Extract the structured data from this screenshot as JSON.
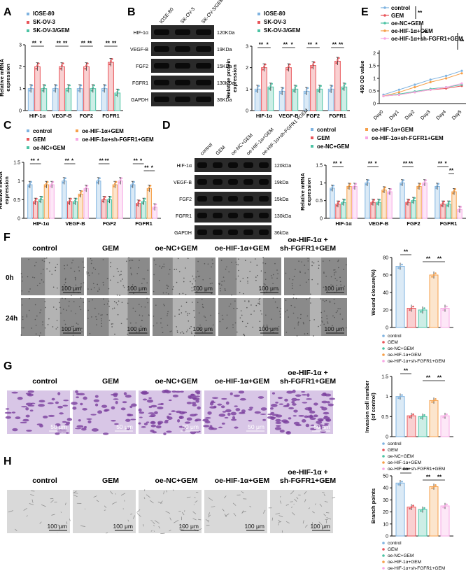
{
  "panel_labels": {
    "A": "A",
    "B": "B",
    "C": "C",
    "D": "D",
    "E": "E",
    "F": "F",
    "G": "G",
    "H": "H"
  },
  "colors": {
    "control": "#7fb3e0",
    "gem": "#e8555a",
    "oe_nc": "#4cc3a4",
    "oe_hif": "#f6a04a",
    "oe_hif_sh": "#f7a8e4",
    "blot_bg": "#222",
    "stain": "#7b3f9e"
  },
  "legends": {
    "a": [
      "IOSE-80",
      "SK-OV-3",
      "SK-OV-3/GEM"
    ],
    "c": [
      "control",
      "GEM",
      "oe-NC+GEM",
      "oe-HIF-1α+GEM",
      "oe-HIF-1α+sh-FGFR1+GEM"
    ],
    "e": [
      "control",
      "GEM",
      "oe-NC+GEM",
      "oe-HIF-1α+GEM",
      "oe-HIF-1α+sh-FGFR1+GEM"
    ],
    "fgh": [
      "control",
      "GEM",
      "oe-NC+GEM",
      "oe-HIF-1α+GEM",
      "oe-HIF-1α+sh-FGFR1+GEM"
    ]
  },
  "blot_b": {
    "lanes": [
      "IOSE-80",
      "SK-OV-3",
      "SK-OV-3/GEM"
    ],
    "rows": [
      {
        "name": "HIF-1α",
        "kda": "120KDa"
      },
      {
        "name": "VEGF-B",
        "kda": "19KDa"
      },
      {
        "name": "FGF2",
        "kda": "15KDa"
      },
      {
        "name": "FGFR1",
        "kda": "130KDa"
      },
      {
        "name": "GAPDH",
        "kda": "36KDa"
      }
    ]
  },
  "blot_d": {
    "lanes": [
      "control",
      "GEM",
      "oe-NC+GEM",
      "oe-HIF-1α+GEM",
      "oe-HIF-1α+sh-FGFR1 +GEM"
    ],
    "rows": [
      {
        "name": "HIF-1α",
        "kda": "120kDa"
      },
      {
        "name": "VEGF-B",
        "kda": "19kDa"
      },
      {
        "name": "FGF2",
        "kda": "15kDa"
      },
      {
        "name": "FGFR1",
        "kda": "130kDa"
      },
      {
        "name": "GAPDH",
        "kda": "36kDa"
      }
    ]
  },
  "micro": {
    "cols": [
      "control",
      "GEM",
      "oe-NC+GEM",
      "oe-HIF-1α+GEM",
      "oe-HIF-1α +",
      "sh-FGFR1+GEM"
    ],
    "rows_f": [
      "0h",
      "24h"
    ],
    "scale": "100 μm",
    "scale_g": "50 μm"
  },
  "chart_data": [
    {
      "id": "A",
      "type": "bar",
      "ylabel": "Relative mRNA expression",
      "ylim": [
        0,
        3
      ],
      "yticks": [
        0,
        1,
        2,
        3
      ],
      "categories": [
        "HIF-1α",
        "VEGF-B",
        "FGF2",
        "FGFR1"
      ],
      "series": [
        {
          "name": "IOSE-80",
          "values": [
            1.0,
            1.0,
            1.0,
            1.0
          ]
        },
        {
          "name": "SK-OV-3",
          "values": [
            2.0,
            2.0,
            2.0,
            2.2
          ]
        },
        {
          "name": "SK-OV-3/GEM",
          "values": [
            1.0,
            1.0,
            1.0,
            0.8
          ]
        }
      ],
      "sig": [
        [
          "**",
          "*"
        ],
        [
          "**",
          "**"
        ],
        [
          "**",
          "**"
        ],
        [
          "**",
          "**"
        ]
      ]
    },
    {
      "id": "B",
      "type": "bar",
      "ylabel": "Relative protein expression",
      "ylim": [
        0,
        3
      ],
      "yticks": [
        0,
        1,
        2,
        3
      ],
      "categories": [
        "HIF-1α",
        "VEGF-B",
        "FGF2",
        "FGFR1"
      ],
      "series": [
        {
          "name": "IOSE-80",
          "values": [
            1.0,
            0.9,
            0.9,
            1.0
          ]
        },
        {
          "name": "SK-OV-3",
          "values": [
            2.0,
            2.0,
            2.1,
            2.3
          ]
        },
        {
          "name": "SK-OV-3/GEM",
          "values": [
            1.1,
            1.0,
            1.0,
            1.1
          ]
        }
      ],
      "sig": [
        [
          "**",
          "*"
        ],
        [
          "**",
          "*"
        ],
        [
          "**",
          "*"
        ],
        [
          "**",
          "**"
        ]
      ]
    },
    {
      "id": "C",
      "type": "bar",
      "ylabel": "Relative mRNA expression",
      "ylim": [
        0,
        1.5
      ],
      "yticks": [
        0.0,
        0.5,
        1.0,
        1.5
      ],
      "categories": [
        "HIF-1α",
        "VEGF-B",
        "FGF2",
        "FGFR1"
      ],
      "series": [
        {
          "name": "control",
          "values": [
            0.9,
            1.0,
            1.0,
            0.9
          ]
        },
        {
          "name": "GEM",
          "values": [
            0.45,
            0.45,
            0.5,
            0.4
          ]
        },
        {
          "name": "oe-NC+GEM",
          "values": [
            0.5,
            0.45,
            0.5,
            0.45
          ]
        },
        {
          "name": "oe-HIF-1α+GEM",
          "values": [
            0.9,
            0.65,
            0.9,
            0.8
          ]
        },
        {
          "name": "oe-HIF-1α+sh-FGFR1+GEM",
          "values": [
            0.9,
            0.8,
            1.0,
            0.3
          ]
        }
      ],
      "sig": [
        [
          "**",
          "*"
        ],
        [
          "**",
          "*"
        ],
        [
          "**",
          "**"
        ],
        [
          "**",
          "*",
          "**",
          "*"
        ]
      ]
    },
    {
      "id": "D",
      "type": "bar",
      "ylabel": "Relative mRNA expression",
      "ylim": [
        0,
        1.5
      ],
      "yticks": [
        0.0,
        0.5,
        1.0,
        1.5
      ],
      "categories": [
        "HIF-1α",
        "VEGF-B",
        "FGF2",
        "FGFR1"
      ],
      "series": [
        {
          "name": "control",
          "values": [
            0.85,
            1.0,
            1.0,
            0.9
          ]
        },
        {
          "name": "GEM",
          "values": [
            0.4,
            0.45,
            0.45,
            0.4
          ]
        },
        {
          "name": "oe-NC+GEM",
          "values": [
            0.45,
            0.45,
            0.5,
            0.4
          ]
        },
        {
          "name": "oe-HIF-1α+GEM",
          "values": [
            0.9,
            0.8,
            0.9,
            0.75
          ]
        },
        {
          "name": "oe-HIF-1α+sh-FGFR1+GEM",
          "values": [
            0.9,
            0.75,
            1.0,
            0.25
          ]
        }
      ],
      "sig": [
        [
          "**",
          "*"
        ],
        [
          "**",
          "*"
        ],
        [
          "**",
          "**"
        ],
        [
          "**",
          "*",
          "**"
        ]
      ]
    },
    {
      "id": "E",
      "type": "line",
      "ylabel": "450 OD value",
      "ylim": [
        0,
        2.0
      ],
      "yticks": [
        0,
        0.5,
        1.0,
        1.5,
        2.0
      ],
      "x": [
        "Day0",
        "Day1",
        "Day2",
        "Day3",
        "Day4",
        "Day5"
      ],
      "series": [
        {
          "name": "control",
          "values": [
            0.35,
            0.55,
            0.75,
            0.95,
            1.1,
            1.3
          ]
        },
        {
          "name": "GEM",
          "values": [
            0.3,
            0.35,
            0.45,
            0.55,
            0.6,
            0.7
          ]
        },
        {
          "name": "oe-NC+GEM",
          "values": [
            0.3,
            0.38,
            0.48,
            0.58,
            0.65,
            0.75
          ]
        },
        {
          "name": "oe-HIF-1α+GEM",
          "values": [
            0.3,
            0.45,
            0.65,
            0.85,
            1.0,
            1.2
          ]
        },
        {
          "name": "oe-HIF-1α+sh-FGFR1+GEM",
          "values": [
            0.3,
            0.35,
            0.45,
            0.55,
            0.65,
            0.8
          ]
        }
      ],
      "sig": [
        "**",
        "**",
        "**"
      ]
    },
    {
      "id": "F",
      "type": "bar",
      "ylabel": "Wound closure(%)",
      "ylim": [
        0,
        80
      ],
      "yticks": [
        0,
        20,
        40,
        60,
        80
      ],
      "categories": [
        "control",
        "GEM",
        "oe-NC+GEM",
        "oe-HIF-1α+GEM",
        "oe-HIF-1α+sh-FGFR1+GEM"
      ],
      "values": [
        70,
        22,
        20,
        60,
        22
      ],
      "sig": [
        "**",
        "**",
        "**"
      ]
    },
    {
      "id": "G",
      "type": "bar",
      "ylabel": "Invasion cell number (of control)",
      "ylim": [
        0,
        1.5
      ],
      "yticks": [
        0.0,
        0.5,
        1.0,
        1.5
      ],
      "categories": [
        "control",
        "GEM",
        "oe-NC+GEM",
        "oe-HIF-1α+GEM",
        "oe-HIF-1α+sh-FGFR1+GEM"
      ],
      "values": [
        1.0,
        0.52,
        0.5,
        0.9,
        0.52
      ],
      "sig": [
        "**",
        "**",
        "**"
      ]
    },
    {
      "id": "H",
      "type": "bar",
      "ylabel": "Branch points",
      "ylim": [
        0,
        50
      ],
      "yticks": [
        0,
        10,
        20,
        30,
        40,
        50
      ],
      "categories": [
        "control",
        "GEM",
        "oe-NC+GEM",
        "oe-HIF-1α+GEM",
        "oe-HIF-1α+sh-FGFR1+GEM"
      ],
      "values": [
        44,
        24,
        22,
        41,
        25
      ],
      "sig": [
        "***",
        "**",
        "**"
      ]
    }
  ]
}
